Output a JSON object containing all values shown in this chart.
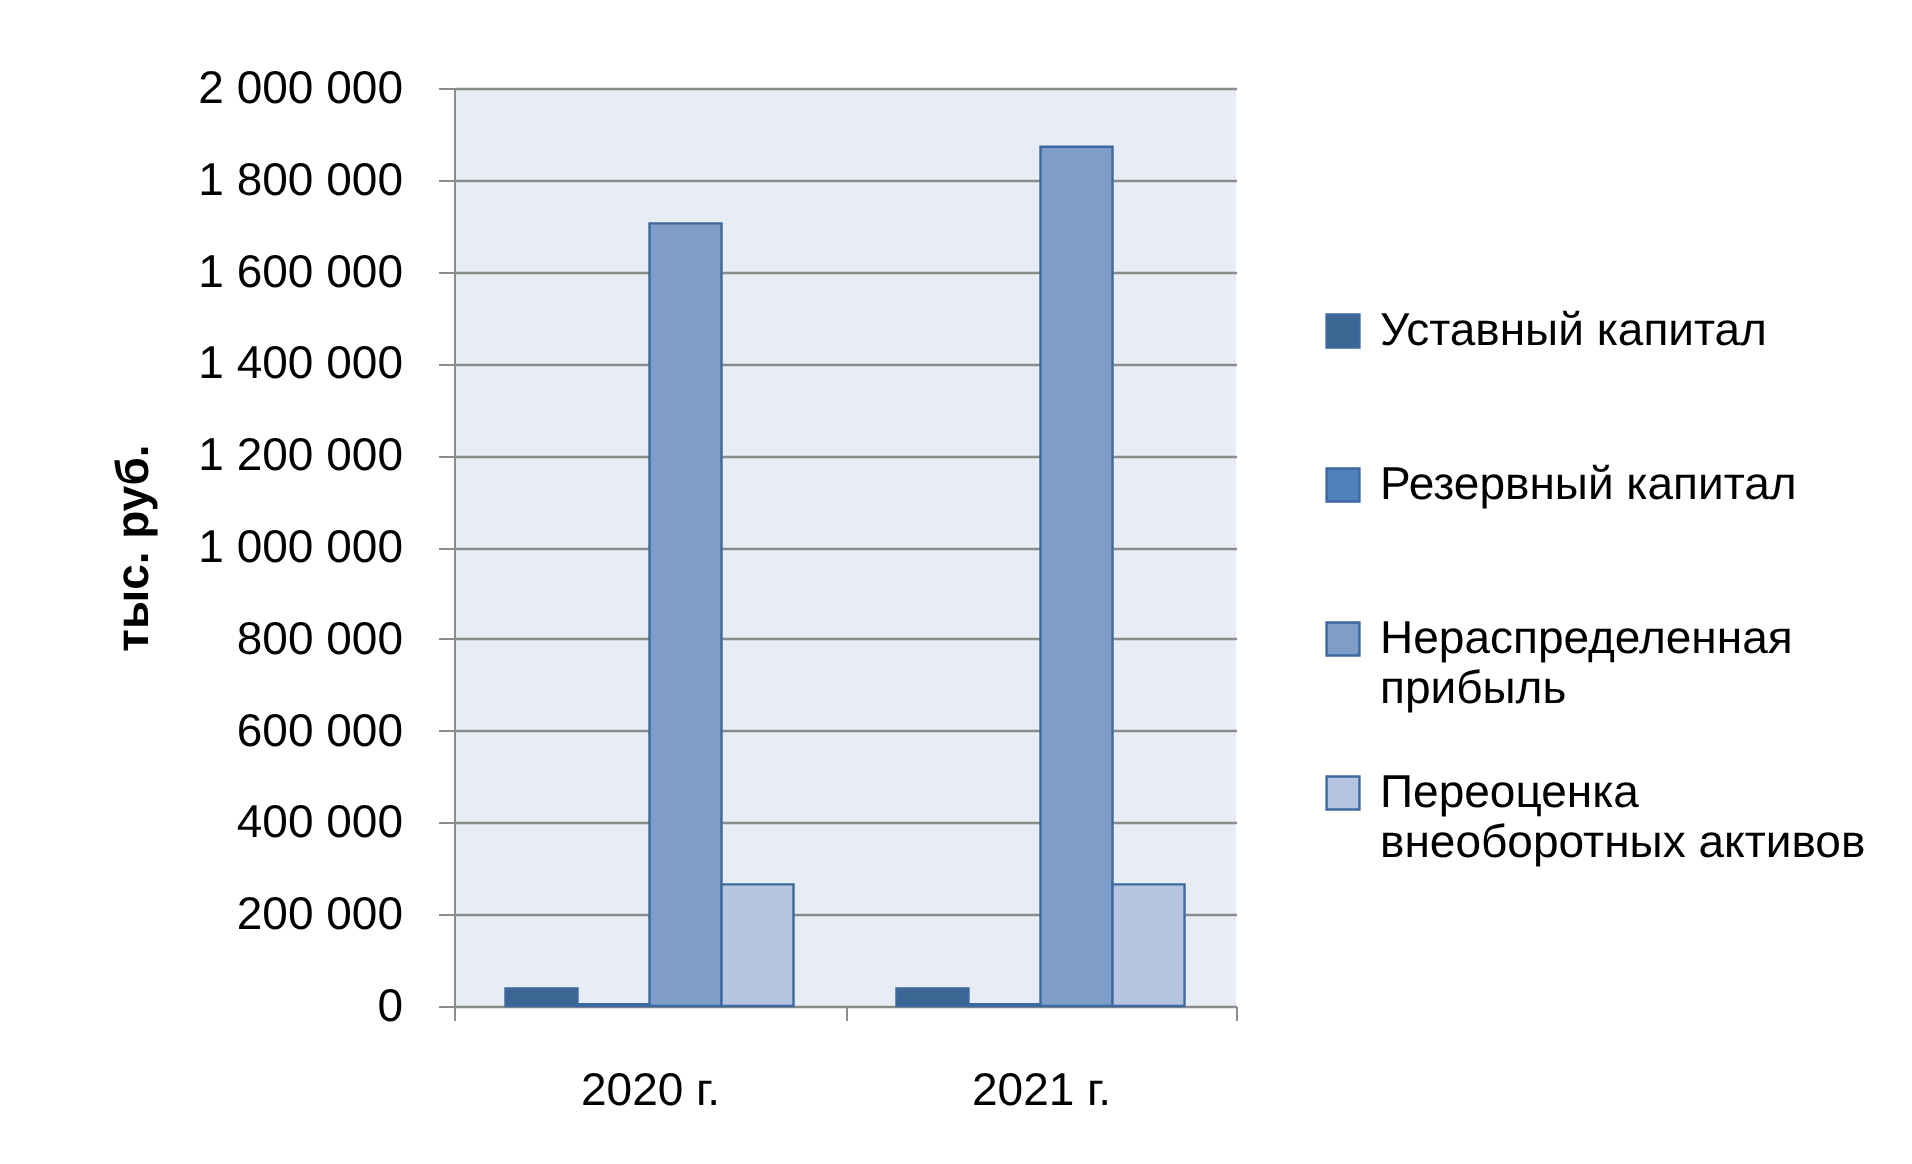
{
  "chart_data": {
    "type": "bar",
    "ylabel": "тыс. руб.",
    "categories": [
      "2020 г.",
      "2021 г."
    ],
    "series": [
      {
        "name": "Уставный капитал",
        "color": "#3b6593",
        "values": [
          38000,
          38000
        ]
      },
      {
        "name": "Резервный капитал",
        "color": "#4f81bd",
        "values": [
          4000,
          4000
        ]
      },
      {
        "name": "Нераспределенная прибыль",
        "color": "#7e9dc8",
        "values": [
          1705000,
          1872000
        ]
      },
      {
        "name": "Переоценка внеоборотных активов",
        "color": "#b6c5df",
        "values": [
          265000,
          265000
        ]
      }
    ],
    "ylim": [
      0,
      2000000
    ],
    "yticks": [
      0,
      {
        "value": 200000,
        "label": "200 000"
      },
      {
        "value": 400000,
        "label": "400 000"
      },
      {
        "value": 600000,
        "label": "600 000"
      },
      {
        "value": 800000,
        "label": "800 000"
      },
      {
        "value": 1000000,
        "label": "1 000 000"
      },
      {
        "value": 1200000,
        "label": "1 200 000"
      },
      {
        "value": 1400000,
        "label": "1 400 000"
      },
      {
        "value": 1600000,
        "label": "1 600 000"
      },
      {
        "value": 1800000,
        "label": "1 800 000"
      },
      {
        "value": 2000000,
        "label": "2 000 000"
      }
    ],
    "grid": "y",
    "legend": "right"
  }
}
